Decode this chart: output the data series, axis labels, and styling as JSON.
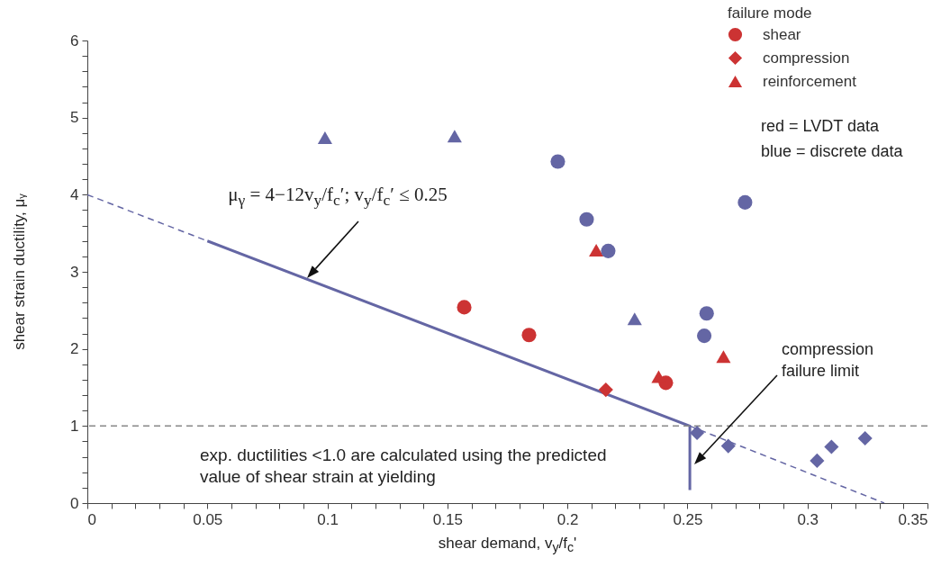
{
  "chart_data": {
    "type": "scatter",
    "xlabel": "shear demand, v$_{y}$/f$_{c}$'",
    "ylabel": "shear strain ductility, μᵧ",
    "legend_title": "failure mode",
    "legend": "top right",
    "grid": false,
    "xlim": [
      0,
      0.35
    ],
    "ylim": [
      0,
      6
    ],
    "xticks": [
      0,
      {
        "value": 0.01,
        "label": null
      },
      {
        "value": 0.02,
        "label": null
      },
      {
        "value": 0.03,
        "label": null
      },
      {
        "value": 0.04,
        "label": null
      },
      0.05,
      {
        "value": 0.06,
        "label": null
      },
      {
        "value": 0.07,
        "label": null
      },
      {
        "value": 0.08,
        "label": null
      },
      {
        "value": 0.09,
        "label": null
      },
      0.1,
      {
        "value": 0.11,
        "label": null
      },
      {
        "value": 0.12,
        "label": null
      },
      {
        "value": 0.13,
        "label": null
      },
      {
        "value": 0.14,
        "label": null
      },
      0.15,
      {
        "value": 0.16,
        "label": null
      },
      {
        "value": 0.17,
        "label": null
      },
      {
        "value": 0.18,
        "label": null
      },
      {
        "value": 0.19,
        "label": null
      },
      0.2,
      {
        "value": 0.21,
        "label": null
      },
      {
        "value": 0.22,
        "label": null
      },
      {
        "value": 0.23,
        "label": null
      },
      {
        "value": 0.24,
        "label": null
      },
      0.25,
      {
        "value": 0.26,
        "label": null
      },
      {
        "value": 0.27,
        "label": null
      },
      {
        "value": 0.28,
        "label": null
      },
      {
        "value": 0.29,
        "label": null
      },
      0.3,
      {
        "value": 0.31,
        "label": null
      },
      {
        "value": 0.32,
        "label": null
      },
      {
        "value": 0.33,
        "label": null
      },
      {
        "value": 0.34,
        "label": null
      },
      0.35
    ],
    "yticks": [
      0,
      {
        "value": 0.2,
        "label": null
      },
      {
        "value": 0.4,
        "label": null
      },
      {
        "value": 0.6,
        "label": null
      },
      {
        "value": 0.8,
        "label": null
      },
      1,
      {
        "value": 1.2,
        "label": null
      },
      {
        "value": 1.4,
        "label": null
      },
      {
        "value": 1.6,
        "label": null
      },
      {
        "value": 1.8,
        "label": null
      },
      2,
      {
        "value": 2.2,
        "label": null
      },
      {
        "value": 2.4,
        "label": null
      },
      {
        "value": 2.6,
        "label": null
      },
      {
        "value": 2.8,
        "label": null
      },
      3,
      {
        "value": 3.2,
        "label": null
      },
      {
        "value": 3.4,
        "label": null
      },
      {
        "value": 3.6,
        "label": null
      },
      {
        "value": 3.8,
        "label": null
      },
      4,
      {
        "value": 4.2,
        "label": null
      },
      {
        "value": 4.4,
        "label": null
      },
      {
        "value": 4.6,
        "label": null
      },
      {
        "value": 4.8,
        "label": null
      },
      5,
      {
        "value": 5.2,
        "label": null
      },
      {
        "value": 5.4,
        "label": null
      },
      {
        "value": 5.6,
        "label": null
      },
      {
        "value": 5.8,
        "label": null
      },
      6
    ],
    "series": [
      {
        "name": "shear",
        "marker": "circle",
        "color": "#cc3333",
        "x": [
          0.157,
          0.184,
          0.241
        ],
        "values": [
          2.54,
          2.18,
          1.56
        ]
      },
      {
        "name": "compression",
        "marker": "diamond",
        "color": "#cc3333",
        "x": [
          0.216
        ],
        "values": [
          1.47
        ]
      },
      {
        "name": "reinforcement",
        "marker": "triangle",
        "color": "#cc3333",
        "x": [
          0.212,
          0.265,
          0.238
        ],
        "values": [
          3.28,
          1.9,
          1.64
        ]
      },
      {
        "marker": "circle",
        "color": "#6466a4",
        "x": [
          0.196,
          0.208,
          0.217,
          0.274,
          0.258,
          0.257
        ],
        "values": [
          4.43,
          3.68,
          3.27,
          3.9,
          2.46,
          2.17
        ]
      },
      {
        "marker": "diamond",
        "color": "#6466a4",
        "x": [
          0.254,
          0.267,
          0.304,
          0.31,
          0.324
        ],
        "values": [
          0.91,
          0.74,
          0.55,
          0.73,
          0.84
        ]
      },
      {
        "marker": "triangle",
        "color": "#6466a4",
        "x": [
          0.099,
          0.153,
          0.228
        ],
        "values": [
          4.74,
          4.76,
          2.39
        ]
      },
      {
        "type": "line",
        "line_style": "solid",
        "color": "#6466a4",
        "x": [
          0.05,
          0.251,
          0.251
        ],
        "values": [
          3.4,
          1,
          0.17
        ]
      },
      {
        "type": "line",
        "line_style": "dashed",
        "color": "#6466a4",
        "x": [
          0,
          0.05
        ],
        "values": [
          4,
          3.4
        ]
      },
      {
        "type": "line",
        "line_style": "dashed",
        "color": "#6466a4",
        "x": [
          0.251,
          0.332
        ],
        "values": [
          1,
          0
        ]
      }
    ],
    "ref_lines": [
      {
        "axis": "y",
        "value": 1,
        "color": "#888888",
        "line_style": "dashed"
      }
    ],
    "annotations": [
      "μ$_{γ}$ = 4−12v$_{y}$/f$_{c}$′; v$_{y}$/f$_{c}$′ ≤ 0.25",
      "compression failure limit",
      "exp. ductilities <1.0 are calculated using the predicted value of shear strain at yielding",
      "red = LVDT data",
      "blue = discrete data"
    ]
  }
}
